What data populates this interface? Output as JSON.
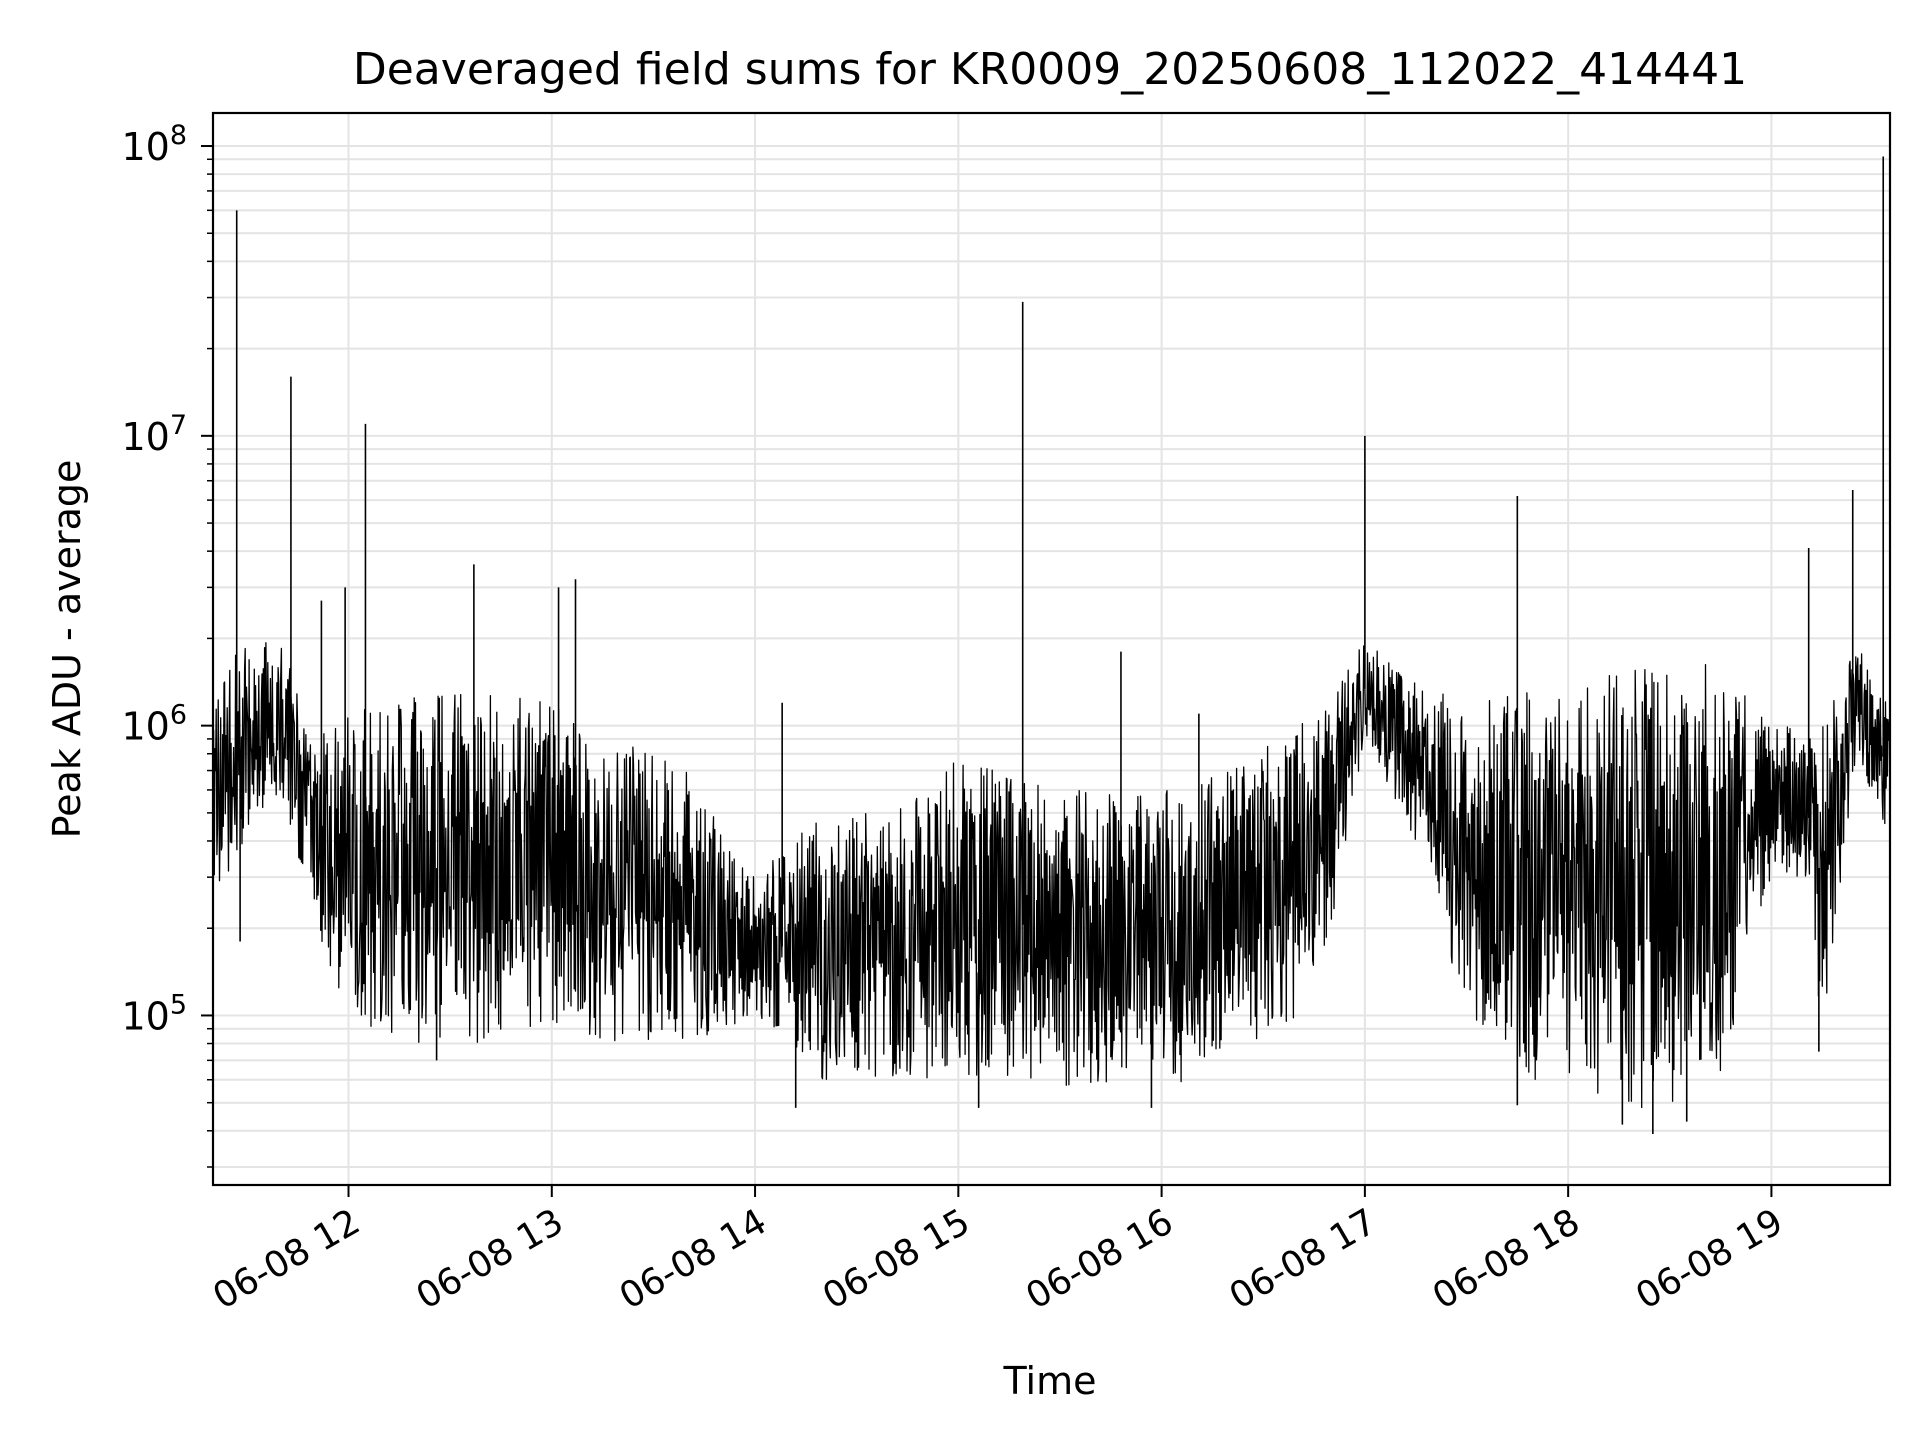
{
  "chart_data": {
    "type": "line",
    "title": "Deaveraged field sums for KR0009_20250608_112022_414441",
    "xlabel": "Time",
    "ylabel": "Peak ADU - average",
    "yscale": "log",
    "grid": "both (major and minor)",
    "x_range": [
      "2025-06-08 11:20",
      "2025-06-08 19:35"
    ],
    "ylim": [
      26000,
      130000000
    ],
    "x_ticks": [
      {
        "t": "2025-06-08 12:00",
        "label": "06-08 12"
      },
      {
        "t": "2025-06-08 13:00",
        "label": "06-08 13"
      },
      {
        "t": "2025-06-08 14:00",
        "label": "06-08 14"
      },
      {
        "t": "2025-06-08 15:00",
        "label": "06-08 15"
      },
      {
        "t": "2025-06-08 16:00",
        "label": "06-08 16"
      },
      {
        "t": "2025-06-08 17:00",
        "label": "06-08 17"
      },
      {
        "t": "2025-06-08 18:00",
        "label": "06-08 18"
      },
      {
        "t": "2025-06-08 19:00",
        "label": "06-08 19"
      }
    ],
    "y_ticks": [
      {
        "value": 100000,
        "base": "10",
        "exp": "5"
      },
      {
        "value": 1000000,
        "base": "10",
        "exp": "6"
      },
      {
        "value": 10000000,
        "base": "10",
        "exp": "7"
      },
      {
        "value": 100000000,
        "base": "10",
        "exp": "8"
      }
    ],
    "line_color": "#000000",
    "envelope": [
      {
        "t": "2025-06-08 11:20",
        "low": 250000,
        "high": 1400000
      },
      {
        "t": "2025-06-08 11:30",
        "low": 400000,
        "high": 2000000
      },
      {
        "t": "2025-06-08 11:40",
        "low": 600000,
        "high": 2000000
      },
      {
        "t": "2025-06-08 11:50",
        "low": 200000,
        "high": 900000
      },
      {
        "t": "2025-06-08 12:00",
        "low": 90000,
        "high": 1100000
      },
      {
        "t": "2025-06-08 12:20",
        "low": 80000,
        "high": 1300000
      },
      {
        "t": "2025-06-08 12:40",
        "low": 80000,
        "high": 1300000
      },
      {
        "t": "2025-06-08 13:00",
        "low": 90000,
        "high": 1200000
      },
      {
        "t": "2025-06-08 13:20",
        "low": 80000,
        "high": 900000
      },
      {
        "t": "2025-06-08 13:40",
        "low": 80000,
        "high": 700000
      },
      {
        "t": "2025-06-08 14:00",
        "low": 100000,
        "high": 300000
      },
      {
        "t": "2025-06-08 14:20",
        "low": 60000,
        "high": 500000
      },
      {
        "t": "2025-06-08 14:40",
        "low": 60000,
        "high": 500000
      },
      {
        "t": "2025-06-08 15:00",
        "low": 60000,
        "high": 800000
      },
      {
        "t": "2025-06-08 15:20",
        "low": 60000,
        "high": 700000
      },
      {
        "t": "2025-06-08 15:40",
        "low": 55000,
        "high": 600000
      },
      {
        "t": "2025-06-08 16:00",
        "low": 55000,
        "high": 600000
      },
      {
        "t": "2025-06-08 16:20",
        "low": 70000,
        "high": 700000
      },
      {
        "t": "2025-06-08 16:40",
        "low": 100000,
        "high": 1000000
      },
      {
        "t": "2025-06-08 16:50",
        "low": 200000,
        "high": 1200000
      },
      {
        "t": "2025-06-08 17:00",
        "low": 900000,
        "high": 2000000
      },
      {
        "t": "2025-06-08 17:15",
        "low": 400000,
        "high": 1400000
      },
      {
        "t": "2025-06-08 17:30",
        "low": 100000,
        "high": 1300000
      },
      {
        "t": "2025-06-08 17:50",
        "low": 60000,
        "high": 1300000
      },
      {
        "t": "2025-06-08 18:10",
        "low": 50000,
        "high": 1500000
      },
      {
        "t": "2025-06-08 18:30",
        "low": 45000,
        "high": 1700000
      },
      {
        "t": "2025-06-08 18:45",
        "low": 60000,
        "high": 1600000
      },
      {
        "t": "2025-06-08 19:00",
        "low": 300000,
        "high": 1000000
      },
      {
        "t": "2025-06-08 19:10",
        "low": 300000,
        "high": 1000000
      },
      {
        "t": "2025-06-08 19:15",
        "low": 80000,
        "high": 1000000
      },
      {
        "t": "2025-06-08 19:25",
        "low": 800000,
        "high": 2000000
      },
      {
        "t": "2025-06-08 19:35",
        "low": 400000,
        "high": 1200000
      }
    ],
    "spikes": [
      {
        "t": "2025-06-08 11:27",
        "value": 60000000
      },
      {
        "t": "2025-06-08 11:43",
        "value": 16000000
      },
      {
        "t": "2025-06-08 11:52",
        "value": 2700000
      },
      {
        "t": "2025-06-08 11:59",
        "value": 3000000
      },
      {
        "t": "2025-06-08 12:05",
        "value": 11000000
      },
      {
        "t": "2025-06-08 12:37",
        "value": 3600000
      },
      {
        "t": "2025-06-08 13:02",
        "value": 3000000
      },
      {
        "t": "2025-06-08 13:07",
        "value": 3200000
      },
      {
        "t": "2025-06-08 14:08",
        "value": 1200000
      },
      {
        "t": "2025-06-08 15:19",
        "value": 29000000
      },
      {
        "t": "2025-06-08 15:48",
        "value": 1800000
      },
      {
        "t": "2025-06-08 16:11",
        "value": 1100000
      },
      {
        "t": "2025-06-08 17:00",
        "value": 10000000
      },
      {
        "t": "2025-06-08 17:45",
        "value": 6200000
      },
      {
        "t": "2025-06-08 19:11",
        "value": 4100000
      },
      {
        "t": "2025-06-08 19:24",
        "value": 6500000
      },
      {
        "t": "2025-06-08 19:33",
        "value": 92000000
      }
    ],
    "dips": [
      {
        "t": "2025-06-08 11:28",
        "value": 180000
      },
      {
        "t": "2025-06-08 12:26",
        "value": 70000
      },
      {
        "t": "2025-06-08 14:12",
        "value": 48000
      },
      {
        "t": "2025-06-08 15:06",
        "value": 48000
      },
      {
        "t": "2025-06-08 15:57",
        "value": 48000
      },
      {
        "t": "2025-06-08 17:45",
        "value": 49000
      },
      {
        "t": "2025-06-08 18:16",
        "value": 42000
      },
      {
        "t": "2025-06-08 18:25",
        "value": 39000
      },
      {
        "t": "2025-06-08 18:35",
        "value": 43000
      },
      {
        "t": "2025-06-08 19:14",
        "value": 75000
      }
    ]
  }
}
